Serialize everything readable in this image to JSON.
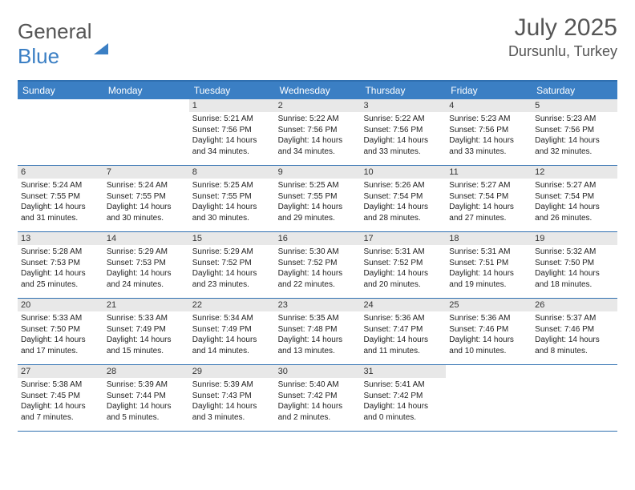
{
  "brand": {
    "part1": "General",
    "part2": "Blue"
  },
  "title": {
    "month": "July 2025",
    "location": "Dursunlu, Turkey"
  },
  "colors": {
    "header_bg": "#3b7fc4",
    "header_text": "#ffffff",
    "rule": "#2f6fb0",
    "daynum_bg": "#e8e8e8",
    "text": "#222222",
    "title_text": "#555555"
  },
  "daysOfWeek": [
    "Sunday",
    "Monday",
    "Tuesday",
    "Wednesday",
    "Thursday",
    "Friday",
    "Saturday"
  ],
  "weeks": [
    [
      {
        "n": "",
        "sunrise": "",
        "sunset": "",
        "daylight": ""
      },
      {
        "n": "",
        "sunrise": "",
        "sunset": "",
        "daylight": ""
      },
      {
        "n": "1",
        "sunrise": "5:21 AM",
        "sunset": "7:56 PM",
        "daylight": "14 hours and 34 minutes."
      },
      {
        "n": "2",
        "sunrise": "5:22 AM",
        "sunset": "7:56 PM",
        "daylight": "14 hours and 34 minutes."
      },
      {
        "n": "3",
        "sunrise": "5:22 AM",
        "sunset": "7:56 PM",
        "daylight": "14 hours and 33 minutes."
      },
      {
        "n": "4",
        "sunrise": "5:23 AM",
        "sunset": "7:56 PM",
        "daylight": "14 hours and 33 minutes."
      },
      {
        "n": "5",
        "sunrise": "5:23 AM",
        "sunset": "7:56 PM",
        "daylight": "14 hours and 32 minutes."
      }
    ],
    [
      {
        "n": "6",
        "sunrise": "5:24 AM",
        "sunset": "7:55 PM",
        "daylight": "14 hours and 31 minutes."
      },
      {
        "n": "7",
        "sunrise": "5:24 AM",
        "sunset": "7:55 PM",
        "daylight": "14 hours and 30 minutes."
      },
      {
        "n": "8",
        "sunrise": "5:25 AM",
        "sunset": "7:55 PM",
        "daylight": "14 hours and 30 minutes."
      },
      {
        "n": "9",
        "sunrise": "5:25 AM",
        "sunset": "7:55 PM",
        "daylight": "14 hours and 29 minutes."
      },
      {
        "n": "10",
        "sunrise": "5:26 AM",
        "sunset": "7:54 PM",
        "daylight": "14 hours and 28 minutes."
      },
      {
        "n": "11",
        "sunrise": "5:27 AM",
        "sunset": "7:54 PM",
        "daylight": "14 hours and 27 minutes."
      },
      {
        "n": "12",
        "sunrise": "5:27 AM",
        "sunset": "7:54 PM",
        "daylight": "14 hours and 26 minutes."
      }
    ],
    [
      {
        "n": "13",
        "sunrise": "5:28 AM",
        "sunset": "7:53 PM",
        "daylight": "14 hours and 25 minutes."
      },
      {
        "n": "14",
        "sunrise": "5:29 AM",
        "sunset": "7:53 PM",
        "daylight": "14 hours and 24 minutes."
      },
      {
        "n": "15",
        "sunrise": "5:29 AM",
        "sunset": "7:52 PM",
        "daylight": "14 hours and 23 minutes."
      },
      {
        "n": "16",
        "sunrise": "5:30 AM",
        "sunset": "7:52 PM",
        "daylight": "14 hours and 22 minutes."
      },
      {
        "n": "17",
        "sunrise": "5:31 AM",
        "sunset": "7:52 PM",
        "daylight": "14 hours and 20 minutes."
      },
      {
        "n": "18",
        "sunrise": "5:31 AM",
        "sunset": "7:51 PM",
        "daylight": "14 hours and 19 minutes."
      },
      {
        "n": "19",
        "sunrise": "5:32 AM",
        "sunset": "7:50 PM",
        "daylight": "14 hours and 18 minutes."
      }
    ],
    [
      {
        "n": "20",
        "sunrise": "5:33 AM",
        "sunset": "7:50 PM",
        "daylight": "14 hours and 17 minutes."
      },
      {
        "n": "21",
        "sunrise": "5:33 AM",
        "sunset": "7:49 PM",
        "daylight": "14 hours and 15 minutes."
      },
      {
        "n": "22",
        "sunrise": "5:34 AM",
        "sunset": "7:49 PM",
        "daylight": "14 hours and 14 minutes."
      },
      {
        "n": "23",
        "sunrise": "5:35 AM",
        "sunset": "7:48 PM",
        "daylight": "14 hours and 13 minutes."
      },
      {
        "n": "24",
        "sunrise": "5:36 AM",
        "sunset": "7:47 PM",
        "daylight": "14 hours and 11 minutes."
      },
      {
        "n": "25",
        "sunrise": "5:36 AM",
        "sunset": "7:46 PM",
        "daylight": "14 hours and 10 minutes."
      },
      {
        "n": "26",
        "sunrise": "5:37 AM",
        "sunset": "7:46 PM",
        "daylight": "14 hours and 8 minutes."
      }
    ],
    [
      {
        "n": "27",
        "sunrise": "5:38 AM",
        "sunset": "7:45 PM",
        "daylight": "14 hours and 7 minutes."
      },
      {
        "n": "28",
        "sunrise": "5:39 AM",
        "sunset": "7:44 PM",
        "daylight": "14 hours and 5 minutes."
      },
      {
        "n": "29",
        "sunrise": "5:39 AM",
        "sunset": "7:43 PM",
        "daylight": "14 hours and 3 minutes."
      },
      {
        "n": "30",
        "sunrise": "5:40 AM",
        "sunset": "7:42 PM",
        "daylight": "14 hours and 2 minutes."
      },
      {
        "n": "31",
        "sunrise": "5:41 AM",
        "sunset": "7:42 PM",
        "daylight": "14 hours and 0 minutes."
      },
      {
        "n": "",
        "sunrise": "",
        "sunset": "",
        "daylight": ""
      },
      {
        "n": "",
        "sunrise": "",
        "sunset": "",
        "daylight": ""
      }
    ]
  ],
  "labels": {
    "sunrise": "Sunrise:",
    "sunset": "Sunset:",
    "daylight": "Daylight:"
  }
}
